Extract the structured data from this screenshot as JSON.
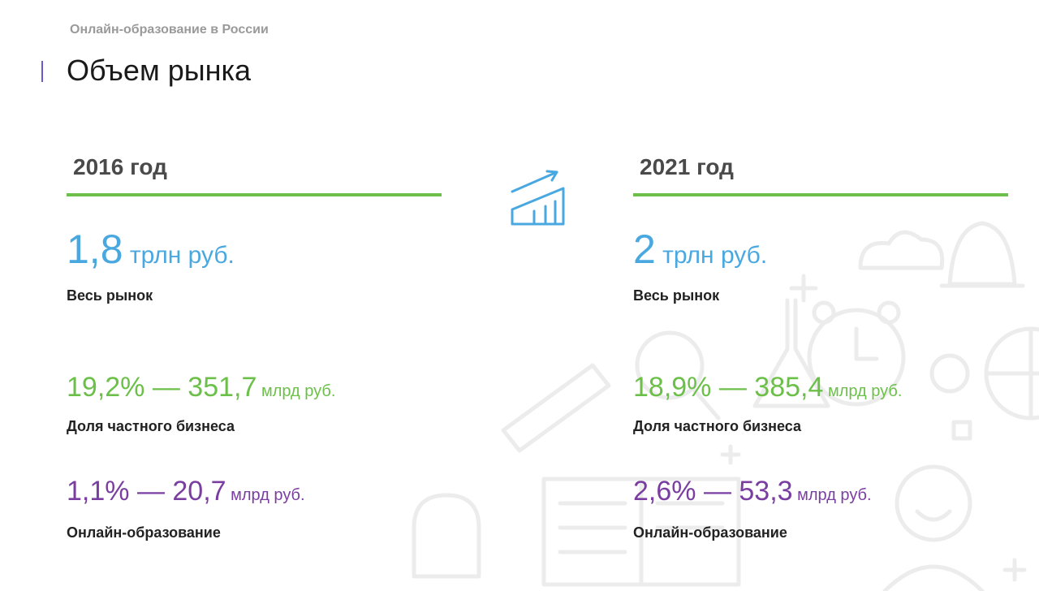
{
  "header": {
    "supertitle": "Онлайн-образование в России",
    "title": "Объем рынка"
  },
  "columns": [
    {
      "year": "2016 год",
      "total_value": "1,8",
      "total_unit": " трлн руб.",
      "total_label": "Весь рынок",
      "private_share": "19,2% — 351,7",
      "private_unit": " млрд руб.",
      "private_label": "Доля частного бизнеса",
      "online_share": "1,1% — 20,7",
      "online_unit": " млрд руб.",
      "online_label": "Онлайн-образование"
    },
    {
      "year": "2021 год",
      "total_value": "2",
      "total_unit": " трлн руб.",
      "total_label": "Весь рынок",
      "private_share": "18,9% — 385,4",
      "private_unit": " млрд руб.",
      "private_label": "Доля частного бизнеса",
      "online_share": "2,6% — 53,3",
      "online_unit": " млрд руб.",
      "online_label": "Онлайн-образование"
    }
  ],
  "colors": {
    "accent_blue": "#4aa8e0",
    "accent_green": "#6cc04a",
    "accent_purple": "#7a3ea0",
    "title_marker": "#6a5acd"
  },
  "icons": {
    "growth": "growth-chart-icon",
    "background": "education-doodles"
  }
}
